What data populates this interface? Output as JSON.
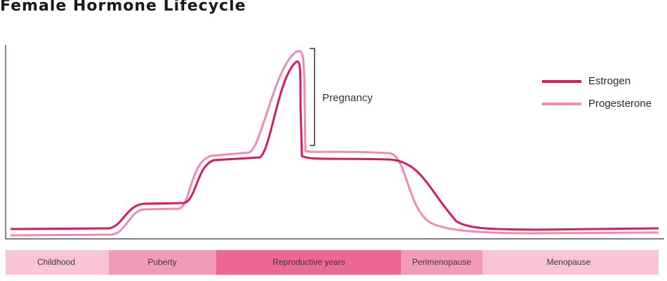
{
  "header": {
    "title": "Female Hormone Lifecycle"
  },
  "annotation": {
    "label": "Pregnancy"
  },
  "legend": {
    "items": [
      {
        "label": "Estrogen"
      },
      {
        "label": "Progesterone"
      }
    ]
  },
  "stages": [
    {
      "label": "Childhood"
    },
    {
      "label": "Puberty"
    },
    {
      "label": "Reproductive years"
    },
    {
      "label": "Perimenopause"
    },
    {
      "label": "Menopause"
    }
  ]
}
